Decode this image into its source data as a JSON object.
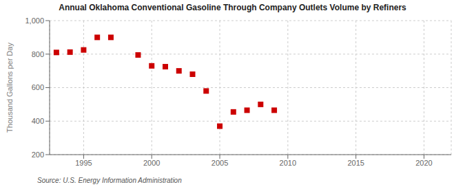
{
  "chart_data": {
    "type": "scatter",
    "title": "Annual Oklahoma Conventional Gasoline Through Company Outlets Volume by Refiners",
    "ylabel": "Thousand Gallons per Day",
    "annotations": [
      "Source: U.S. Energy Information Administration"
    ],
    "x": [
      1993,
      1994,
      1995,
      1996,
      1997,
      1999,
      2000,
      2001,
      2002,
      2003,
      2004,
      2005,
      2006,
      2007,
      2008,
      2009
    ],
    "values": [
      810,
      812,
      825,
      900,
      900,
      795,
      730,
      725,
      700,
      680,
      580,
      370,
      455,
      465,
      500,
      465
    ],
    "color": "#cc0000",
    "marker": "square",
    "xlim": [
      1992.5,
      2022
    ],
    "ylim": [
      200,
      1000
    ],
    "xticks": [
      1995,
      2000,
      2005,
      2010,
      2015,
      2020
    ],
    "yticks": [
      200,
      400,
      600,
      800,
      {
        "value": 1000,
        "label": "1,000"
      }
    ],
    "grid": true
  }
}
